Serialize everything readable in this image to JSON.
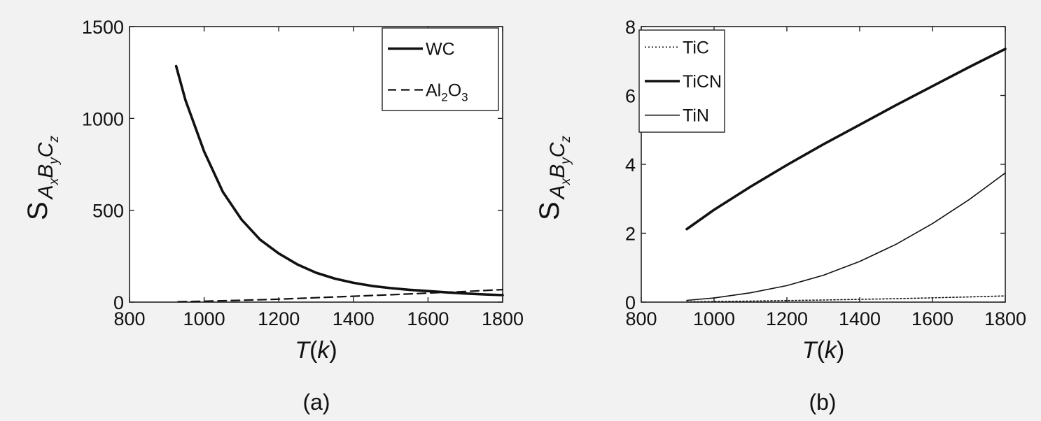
{
  "chart_data": [
    {
      "type": "line",
      "panel_label": "(a)",
      "xlabel": {
        "var": "T",
        "open": "(",
        "unit": "k",
        "close": ")"
      },
      "ylabel": {
        "S": "S",
        "A": "A",
        "x": "x",
        "B": "B",
        "y": "y",
        "C": "C",
        "z": "z"
      },
      "xlim": [
        800,
        1800
      ],
      "ylim": [
        0,
        1500
      ],
      "xticks": [
        800,
        1000,
        1200,
        1400,
        1600,
        1800
      ],
      "yticks": [
        0,
        500,
        1000,
        1500
      ],
      "legend_position": "top-right",
      "series": [
        {
          "name": "WC",
          "style": "solid-thick",
          "x": [
            925,
            950,
            1000,
            1050,
            1100,
            1150,
            1200,
            1250,
            1300,
            1350,
            1400,
            1450,
            1500,
            1550,
            1600,
            1650,
            1700,
            1750,
            1800
          ],
          "y": [
            1285,
            1100,
            820,
            600,
            450,
            340,
            265,
            205,
            160,
            128,
            105,
            88,
            76,
            67,
            60,
            53,
            47,
            42,
            38
          ]
        },
        {
          "name_parts": [
            "Al",
            "2",
            "O",
            "3"
          ],
          "style": "dashed",
          "x": [
            930,
            1000,
            1100,
            1200,
            1300,
            1400,
            1500,
            1600,
            1700,
            1800
          ],
          "y": [
            2,
            5,
            10,
            16,
            24,
            32,
            40,
            49,
            58,
            68
          ]
        }
      ]
    },
    {
      "type": "line",
      "panel_label": "(b)",
      "xlabel": {
        "var": "T",
        "open": "(",
        "unit": "k",
        "close": ")"
      },
      "ylabel": {
        "S": "S",
        "A": "A",
        "x": "x",
        "B": "B",
        "y": "y",
        "C": "C",
        "z": "z"
      },
      "xlim": [
        800,
        1800
      ],
      "ylim": [
        0,
        8
      ],
      "xticks": [
        800,
        1000,
        1200,
        1400,
        1600,
        1800
      ],
      "yticks": [
        0,
        2,
        4,
        6,
        8
      ],
      "legend_position": "top-left",
      "series": [
        {
          "name": "TiC",
          "style": "dotted",
          "x": [
            925,
            1100,
            1300,
            1500,
            1700,
            1800
          ],
          "y": [
            0.01,
            0.03,
            0.06,
            0.1,
            0.15,
            0.18
          ]
        },
        {
          "name": "TiCN",
          "style": "solid-thick",
          "x": [
            925,
            1000,
            1100,
            1200,
            1300,
            1400,
            1500,
            1600,
            1700,
            1800
          ],
          "y": [
            2.12,
            2.68,
            3.35,
            3.98,
            4.58,
            5.15,
            5.72,
            6.27,
            6.82,
            7.35
          ]
        },
        {
          "name": "TiN",
          "style": "solid-thin",
          "x": [
            925,
            1000,
            1100,
            1200,
            1300,
            1400,
            1500,
            1600,
            1700,
            1800
          ],
          "y": [
            0.05,
            0.12,
            0.27,
            0.48,
            0.78,
            1.18,
            1.68,
            2.28,
            2.97,
            3.75
          ]
        }
      ]
    }
  ]
}
